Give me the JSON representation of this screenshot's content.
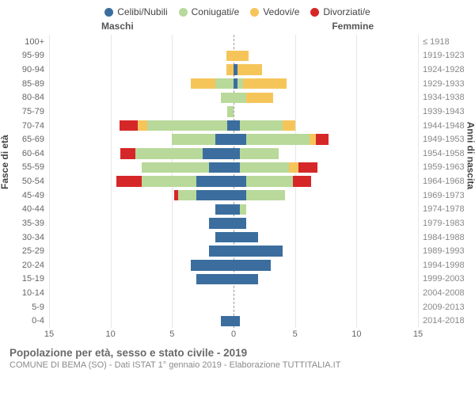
{
  "chart": {
    "type": "population-pyramid-stacked",
    "legend": [
      {
        "label": "Celibi/Nubili",
        "color": "#3b6e9e"
      },
      {
        "label": "Coniugati/e",
        "color": "#b8d99a"
      },
      {
        "label": "Vedovi/e",
        "color": "#f6c55a"
      },
      {
        "label": "Divorziati/e",
        "color": "#d62728"
      }
    ],
    "gender_labels": {
      "male": "Maschi",
      "female": "Femmine"
    },
    "y_left_title": "Fasce di età",
    "y_right_title": "Anni di nascita",
    "x_axis": {
      "min": -15,
      "max": 15,
      "ticks": [
        -15,
        -10,
        -5,
        0,
        5,
        10,
        15
      ],
      "tick_labels": [
        "15",
        "10",
        "5",
        "0",
        "5",
        "10",
        "15"
      ]
    },
    "age_bands": [
      "100+",
      "95-99",
      "90-94",
      "85-89",
      "80-84",
      "75-79",
      "70-74",
      "65-69",
      "60-64",
      "55-59",
      "50-54",
      "45-49",
      "40-44",
      "35-39",
      "30-34",
      "25-29",
      "20-24",
      "15-19",
      "10-14",
      "5-9",
      "0-4"
    ],
    "birth_years": [
      "≤ 1918",
      "1919-1923",
      "1924-1928",
      "1929-1933",
      "1934-1938",
      "1939-1943",
      "1944-1948",
      "1949-1953",
      "1954-1958",
      "1959-1963",
      "1964-1968",
      "1969-1973",
      "1974-1978",
      "1979-1983",
      "1984-1988",
      "1989-1993",
      "1994-1998",
      "1999-2003",
      "2004-2008",
      "2009-2013",
      "2014-2018"
    ],
    "rows": [
      {
        "male": {
          "single": 0,
          "married": 0,
          "widowed": 0,
          "divorced": 0
        },
        "female": {
          "single": 0,
          "married": 0,
          "widowed": 0,
          "divorced": 0
        }
      },
      {
        "male": {
          "single": 0,
          "married": 0,
          "widowed": 0.6,
          "divorced": 0
        },
        "female": {
          "single": 0,
          "married": 0,
          "widowed": 1.2,
          "divorced": 0
        }
      },
      {
        "male": {
          "single": 0,
          "married": 0,
          "widowed": 0.6,
          "divorced": 0
        },
        "female": {
          "single": 0.3,
          "married": 0,
          "widowed": 2.0,
          "divorced": 0
        }
      },
      {
        "male": {
          "single": 0,
          "married": 1.5,
          "widowed": 2.0,
          "divorced": 0
        },
        "female": {
          "single": 0.3,
          "married": 0.5,
          "widowed": 3.5,
          "divorced": 0
        }
      },
      {
        "male": {
          "single": 0,
          "married": 1.0,
          "widowed": 0,
          "divorced": 0
        },
        "female": {
          "single": 0,
          "married": 1.0,
          "widowed": 2.2,
          "divorced": 0
        }
      },
      {
        "male": {
          "single": 0,
          "married": 0.5,
          "widowed": 0,
          "divorced": 0
        },
        "female": {
          "single": 0,
          "married": 0,
          "widowed": 0,
          "divorced": 0
        }
      },
      {
        "male": {
          "single": 0.5,
          "married": 6.5,
          "widowed": 0.8,
          "divorced": 1.5
        },
        "female": {
          "single": 0.5,
          "married": 3.5,
          "widowed": 1.0,
          "divorced": 0
        }
      },
      {
        "male": {
          "single": 1.5,
          "married": 3.5,
          "widowed": 0,
          "divorced": 0
        },
        "female": {
          "single": 1.0,
          "married": 5.2,
          "widowed": 0.5,
          "divorced": 1.0
        }
      },
      {
        "male": {
          "single": 2.5,
          "married": 5.5,
          "widowed": 0,
          "divorced": 1.2
        },
        "female": {
          "single": 0.5,
          "married": 3.2,
          "widowed": 0,
          "divorced": 0
        }
      },
      {
        "male": {
          "single": 2.0,
          "married": 5.5,
          "widowed": 0,
          "divorced": 0
        },
        "female": {
          "single": 0.5,
          "married": 4.0,
          "widowed": 0.8,
          "divorced": 1.5
        }
      },
      {
        "male": {
          "single": 3.0,
          "married": 4.5,
          "widowed": 0,
          "divorced": 2.0
        },
        "female": {
          "single": 1.0,
          "married": 3.8,
          "widowed": 0,
          "divorced": 1.5
        }
      },
      {
        "male": {
          "single": 3.0,
          "married": 1.5,
          "widowed": 0,
          "divorced": 0.3
        },
        "female": {
          "single": 1.0,
          "married": 3.2,
          "widowed": 0,
          "divorced": 0
        }
      },
      {
        "male": {
          "single": 1.5,
          "married": 0,
          "widowed": 0,
          "divorced": 0
        },
        "female": {
          "single": 0.5,
          "married": 0.5,
          "widowed": 0,
          "divorced": 0
        }
      },
      {
        "male": {
          "single": 2.0,
          "married": 0,
          "widowed": 0,
          "divorced": 0
        },
        "female": {
          "single": 1.0,
          "married": 0,
          "widowed": 0,
          "divorced": 0
        }
      },
      {
        "male": {
          "single": 1.5,
          "married": 0,
          "widowed": 0,
          "divorced": 0
        },
        "female": {
          "single": 2.0,
          "married": 0,
          "widowed": 0,
          "divorced": 0
        }
      },
      {
        "male": {
          "single": 2.0,
          "married": 0,
          "widowed": 0,
          "divorced": 0
        },
        "female": {
          "single": 4.0,
          "married": 0,
          "widowed": 0,
          "divorced": 0
        }
      },
      {
        "male": {
          "single": 3.5,
          "married": 0,
          "widowed": 0,
          "divorced": 0
        },
        "female": {
          "single": 3.0,
          "married": 0,
          "widowed": 0,
          "divorced": 0
        }
      },
      {
        "male": {
          "single": 3.0,
          "married": 0,
          "widowed": 0,
          "divorced": 0
        },
        "female": {
          "single": 2.0,
          "married": 0,
          "widowed": 0,
          "divorced": 0
        }
      },
      {
        "male": {
          "single": 0,
          "married": 0,
          "widowed": 0,
          "divorced": 0
        },
        "female": {
          "single": 0,
          "married": 0,
          "widowed": 0,
          "divorced": 0
        }
      },
      {
        "male": {
          "single": 0,
          "married": 0,
          "widowed": 0,
          "divorced": 0
        },
        "female": {
          "single": 0,
          "married": 0,
          "widowed": 0,
          "divorced": 0
        }
      },
      {
        "male": {
          "single": 1.0,
          "married": 0,
          "widowed": 0,
          "divorced": 0
        },
        "female": {
          "single": 0.5,
          "married": 0,
          "widowed": 0,
          "divorced": 0
        }
      }
    ],
    "bar_fill_height_pct": 76,
    "background_color": "#ffffff",
    "grid_color": "#e6e6e6",
    "center_line_color": "#999999"
  },
  "footer": {
    "title": "Popolazione per età, sesso e stato civile - 2019",
    "subtitle": "COMUNE DI BEMA (SO) - Dati ISTAT 1° gennaio 2019 - Elaborazione TUTTITALIA.IT"
  }
}
